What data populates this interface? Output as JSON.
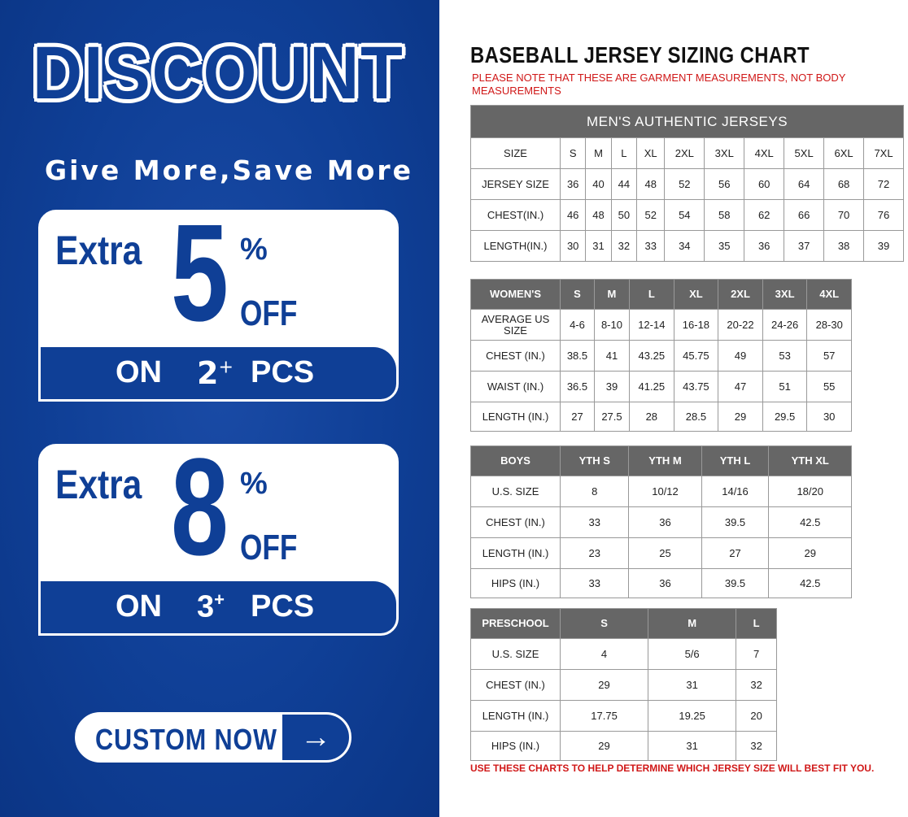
{
  "promo": {
    "headline": "DISCOUNT",
    "tagline": "Give More,Save More",
    "offers": [
      {
        "extra": "Extra",
        "value": "5",
        "percent": "%",
        "off": "OFF",
        "on": "ON",
        "qty": "2",
        "plus": "+",
        "pcs": "PCS"
      },
      {
        "extra": "Extra",
        "value": "8",
        "percent": "%",
        "off": "OFF",
        "on": "ON",
        "qty": "3",
        "plus": "+",
        "pcs": "PCS"
      }
    ],
    "cta": {
      "label": "CUSTOM NOW",
      "icon": "arrow-right-icon",
      "arrow": "→"
    },
    "colors": {
      "brand_blue": "#0f3f96"
    }
  },
  "chart": {
    "title": "BASEBALL JERSEY SIZING CHART",
    "note": "PLEASE NOTE THAT THESE ARE GARMENT MEASUREMENTS, NOT BODY MEASUREMENTS",
    "footer": "USE THESE CHARTS TO HELP DETERMINE WHICH JERSEY SIZE WILL BEST FIT YOU.",
    "tables": [
      {
        "banner": "MEN'S AUTHENTIC JERSEYS",
        "header_shaded": false,
        "rows": [
          [
            "SIZE",
            "S",
            "M",
            "L",
            "XL",
            "2XL",
            "3XL",
            "4XL",
            "5XL",
            "6XL",
            "7XL"
          ],
          [
            "JERSEY SIZE",
            "36",
            "40",
            "44",
            "48",
            "52",
            "56",
            "60",
            "64",
            "68",
            "72"
          ],
          [
            "CHEST(IN.)",
            "46",
            "48",
            "50",
            "52",
            "54",
            "58",
            "62",
            "66",
            "70",
            "76"
          ],
          [
            "LENGTH(IN.)",
            "30",
            "31",
            "32",
            "33",
            "34",
            "35",
            "36",
            "37",
            "38",
            "39"
          ]
        ]
      },
      {
        "header_shaded": true,
        "rows": [
          [
            "WOMEN'S",
            "S",
            "M",
            "L",
            "XL",
            "2XL",
            "3XL",
            "4XL"
          ],
          [
            "AVERAGE US SIZE",
            "4-6",
            "8-10",
            "12-14",
            "16-18",
            "20-22",
            "24-26",
            "28-30"
          ],
          [
            "CHEST (IN.)",
            "38.5",
            "41",
            "43.25",
            "45.75",
            "49",
            "53",
            "57"
          ],
          [
            "WAIST (IN.)",
            "36.5",
            "39",
            "41.25",
            "43.75",
            "47",
            "51",
            "55"
          ],
          [
            "LENGTH (IN.)",
            "27",
            "27.5",
            "28",
            "28.5",
            "29",
            "29.5",
            "30"
          ]
        ]
      },
      {
        "header_shaded": true,
        "rows": [
          [
            "BOYS",
            "YTH S",
            "YTH M",
            "YTH L",
            "YTH XL"
          ],
          [
            "U.S. SIZE",
            "8",
            "10/12",
            "14/16",
            "18/20"
          ],
          [
            "CHEST (IN.)",
            "33",
            "36",
            "39.5",
            "42.5"
          ],
          [
            "LENGTH (IN.)",
            "23",
            "25",
            "27",
            "29"
          ],
          [
            "HIPS (IN.)",
            "33",
            "36",
            "39.5",
            "42.5"
          ]
        ]
      },
      {
        "header_shaded": true,
        "rows": [
          [
            "PRESCHOOL",
            "S",
            "M",
            "L"
          ],
          [
            "U.S. SIZE",
            "4",
            "5/6",
            "7"
          ],
          [
            "CHEST (IN.)",
            "29",
            "31",
            "32"
          ],
          [
            "LENGTH (IN.)",
            "17.75",
            "19.25",
            "20"
          ],
          [
            "HIPS (IN.)",
            "29",
            "31",
            "32"
          ]
        ]
      }
    ]
  }
}
